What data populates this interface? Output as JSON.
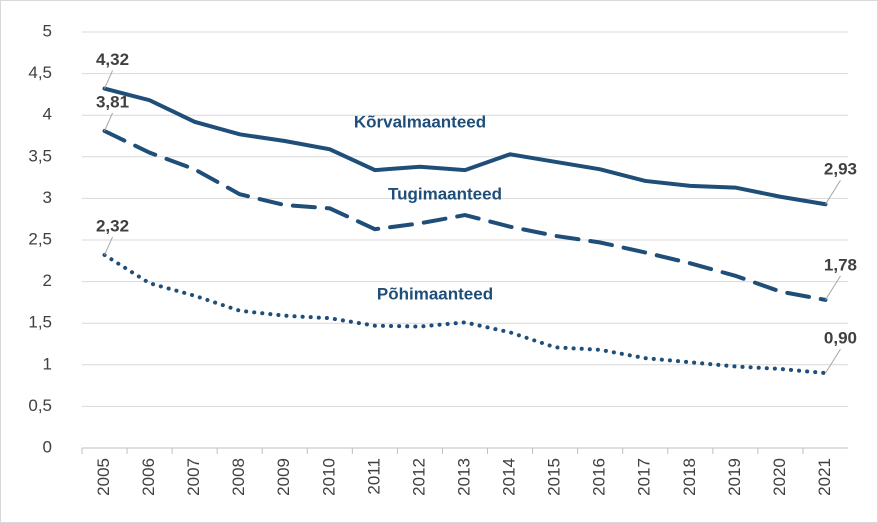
{
  "chart_data": {
    "type": "line",
    "categories": [
      "2005",
      "2006",
      "2007",
      "2008",
      "2009",
      "2010",
      "2011",
      "2012",
      "2013",
      "2014",
      "2015",
      "2016",
      "2017",
      "2018",
      "2019",
      "2020",
      "2021"
    ],
    "series": [
      {
        "name": "Kõrvalmaanteed",
        "color": "#1f4e79",
        "style": "solid",
        "values": [
          4.32,
          4.18,
          3.92,
          3.77,
          3.69,
          3.59,
          3.34,
          3.38,
          3.34,
          3.53,
          3.44,
          3.35,
          3.21,
          3.15,
          3.13,
          3.02,
          2.93
        ],
        "value_labels": [
          "4,32",
          null,
          null,
          null,
          null,
          null,
          null,
          null,
          null,
          null,
          null,
          null,
          null,
          null,
          null,
          null,
          "2,93"
        ]
      },
      {
        "name": "Tugimaanteed",
        "color": "#1f4e79",
        "style": "dashed",
        "values": [
          3.81,
          3.55,
          3.35,
          3.05,
          2.92,
          2.88,
          2.63,
          2.7,
          2.8,
          2.66,
          2.55,
          2.47,
          2.35,
          2.22,
          2.07,
          1.88,
          1.78
        ],
        "value_labels": [
          "3,81",
          null,
          null,
          null,
          null,
          null,
          null,
          null,
          null,
          null,
          null,
          null,
          null,
          null,
          null,
          null,
          "1,78"
        ]
      },
      {
        "name": "Põhimaanteed",
        "color": "#1f4e79",
        "style": "dotted",
        "values": [
          2.32,
          1.98,
          1.83,
          1.65,
          1.59,
          1.56,
          1.47,
          1.46,
          1.51,
          1.39,
          1.21,
          1.18,
          1.08,
          1.03,
          0.98,
          0.95,
          0.9
        ],
        "value_labels": [
          "2,32",
          null,
          null,
          null,
          null,
          null,
          null,
          null,
          null,
          null,
          null,
          null,
          null,
          null,
          null,
          null,
          "0,90"
        ]
      }
    ],
    "ylim": [
      0,
      5
    ],
    "yticks": [
      0,
      {
        "value": 0.5,
        "label": "0,5"
      },
      1,
      {
        "value": 1.5,
        "label": "1,5"
      },
      2,
      {
        "value": 2.5,
        "label": "2,5"
      },
      3,
      {
        "value": 3.5,
        "label": "3,5"
      },
      4,
      {
        "value": 4.5,
        "label": "4,5"
      },
      5
    ],
    "grid": true
  }
}
